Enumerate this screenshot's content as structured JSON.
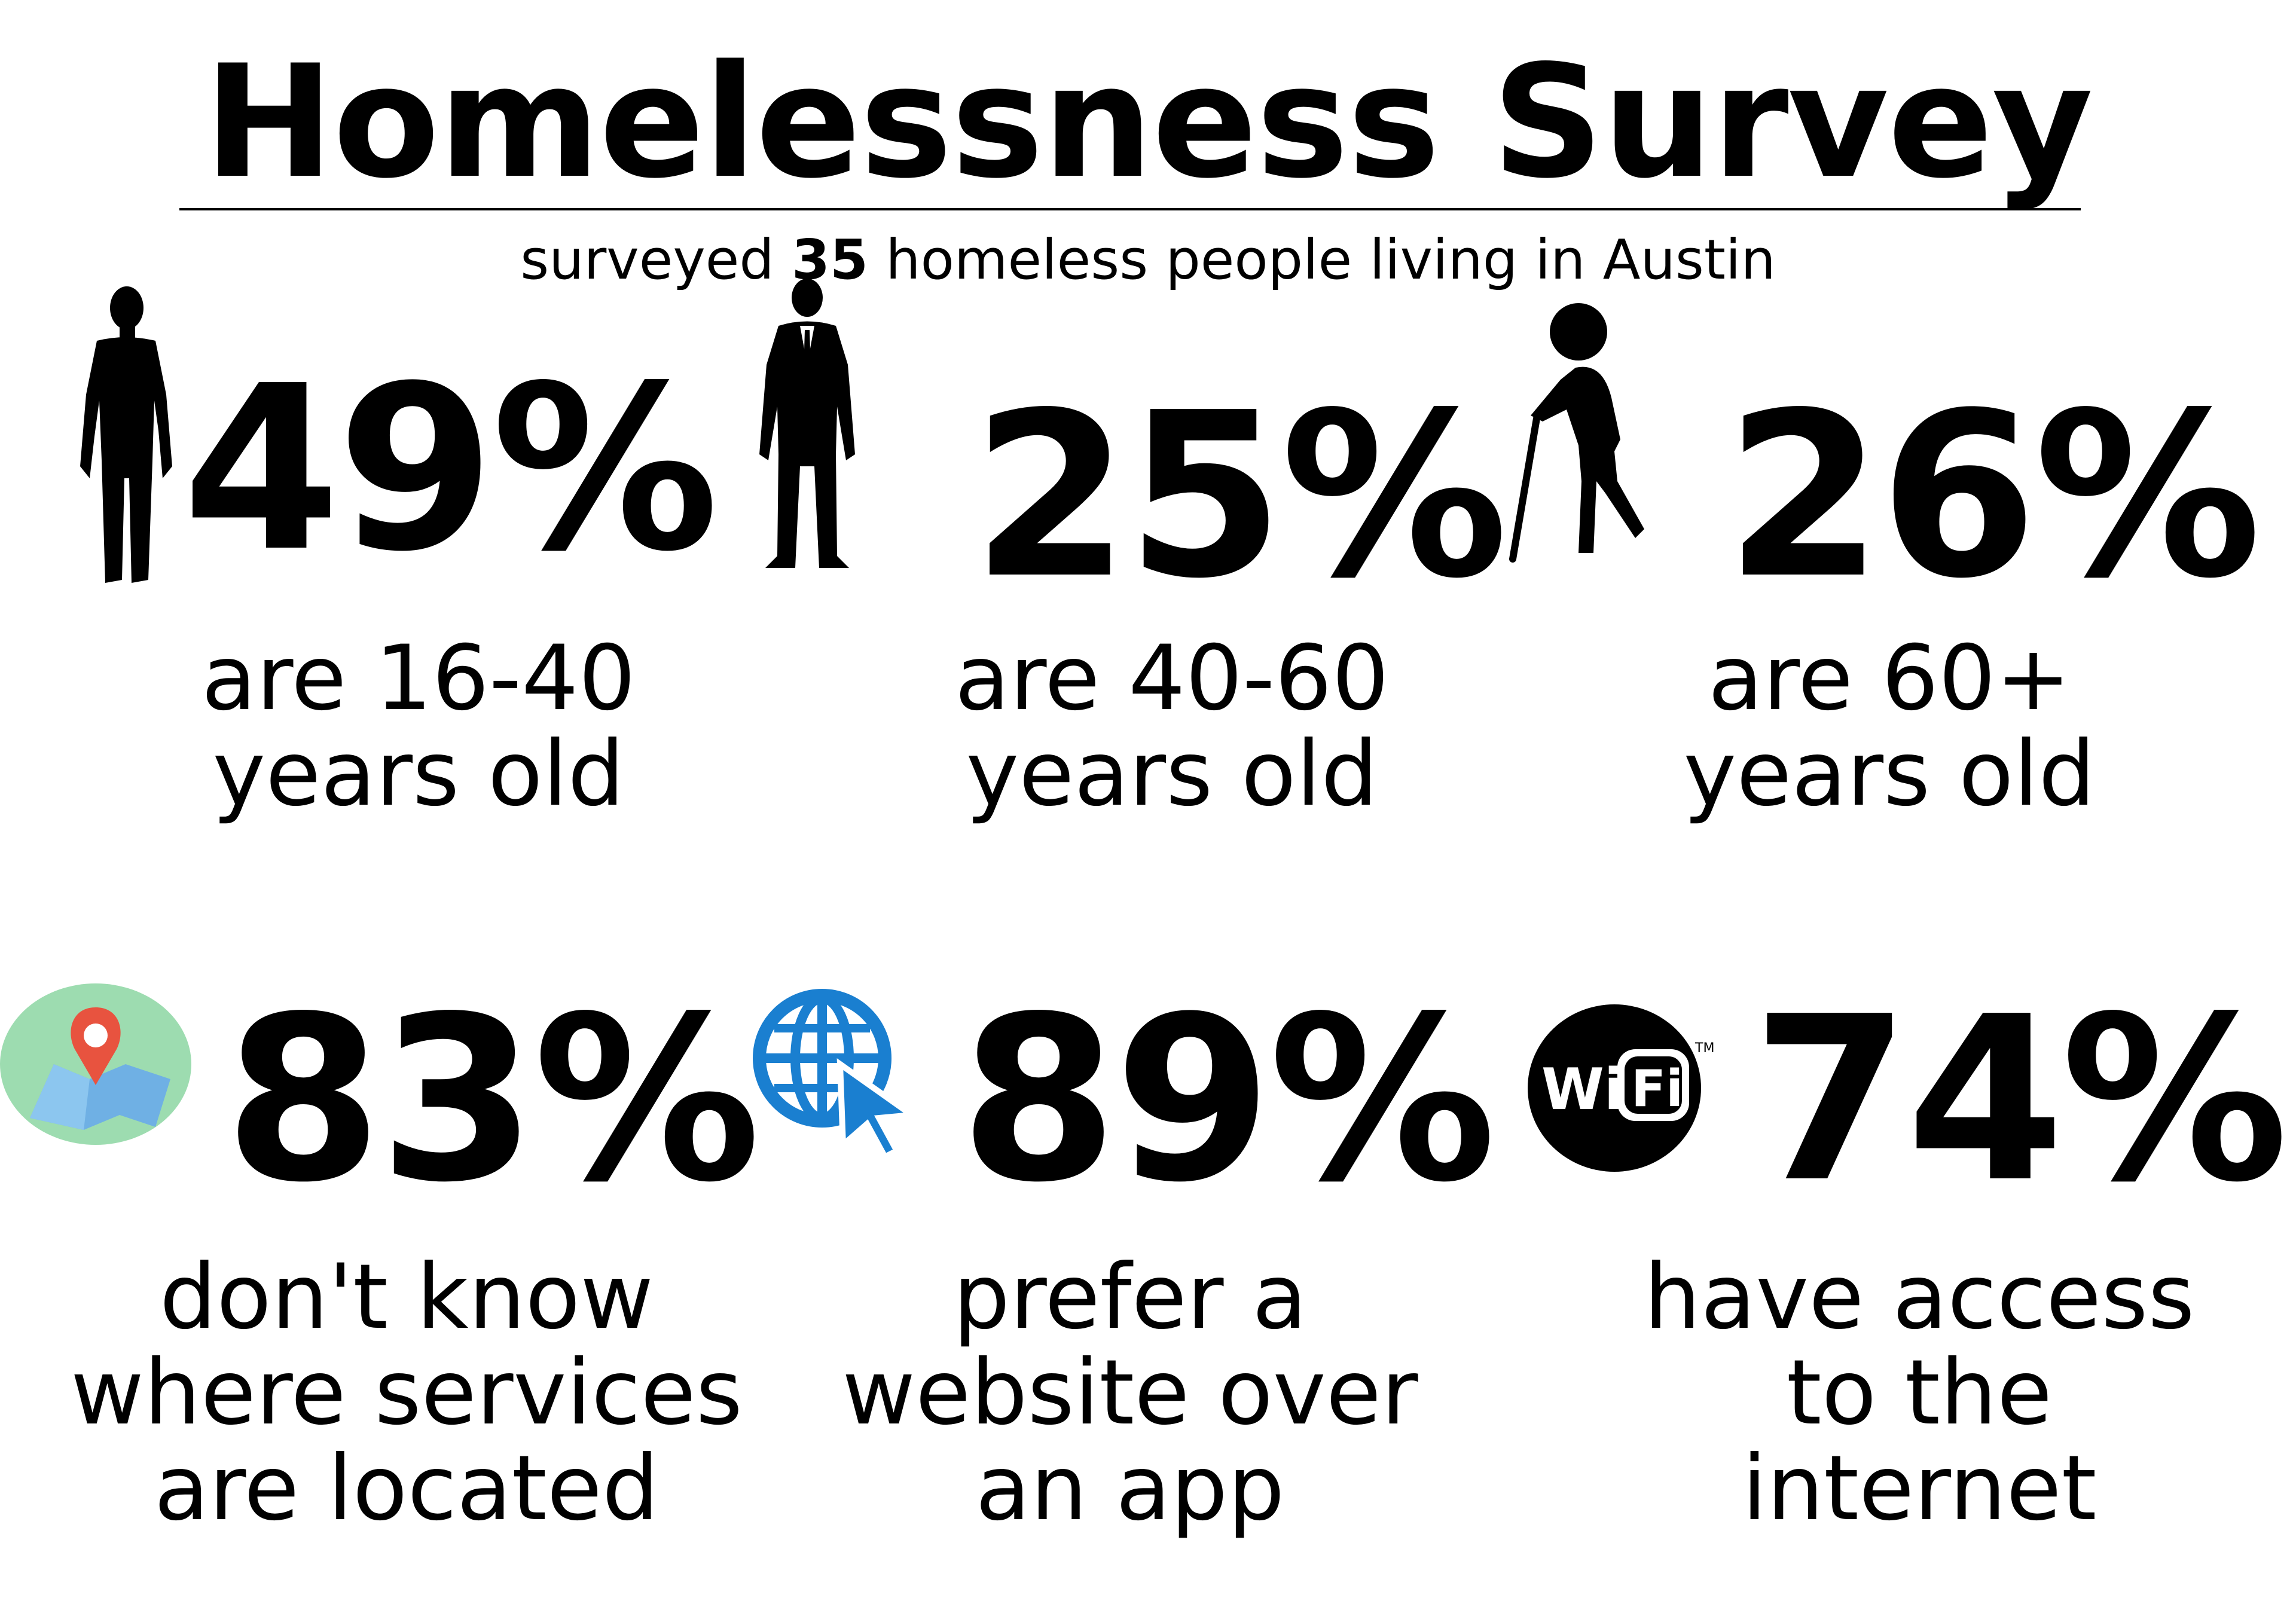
{
  "title": "Homelessness Survey",
  "subtitle": {
    "before": "surveyed ",
    "count": "35",
    "after": " homeless people living in Austin"
  },
  "stats": [
    {
      "icon": "young-man-silhouette-icon",
      "value": "49%",
      "caption": [
        "are 16-40",
        "years old"
      ]
    },
    {
      "icon": "businessman-silhouette-icon",
      "value": "25%",
      "caption": [
        "are 40-60",
        "years old"
      ]
    },
    {
      "icon": "elderly-person-cane-icon",
      "value": "26%",
      "caption": [
        "are 60+",
        "years old"
      ]
    },
    {
      "icon": "map-pin-icon",
      "value": "83%",
      "caption": [
        "don't know",
        "where services",
        "are located"
      ]
    },
    {
      "icon": "globe-cursor-icon",
      "value": "89%",
      "caption": [
        "prefer a",
        "website over",
        "an app"
      ]
    },
    {
      "icon": "wifi-logo-icon",
      "value": "74%",
      "caption": [
        "have access",
        "to the",
        "internet"
      ]
    }
  ],
  "colors": {
    "text": "#000000",
    "map_circle": "#9ddcb0",
    "map_pin": "#e8533f",
    "map_paper": "#6fb0e4",
    "globe": "#1a7fd0"
  }
}
